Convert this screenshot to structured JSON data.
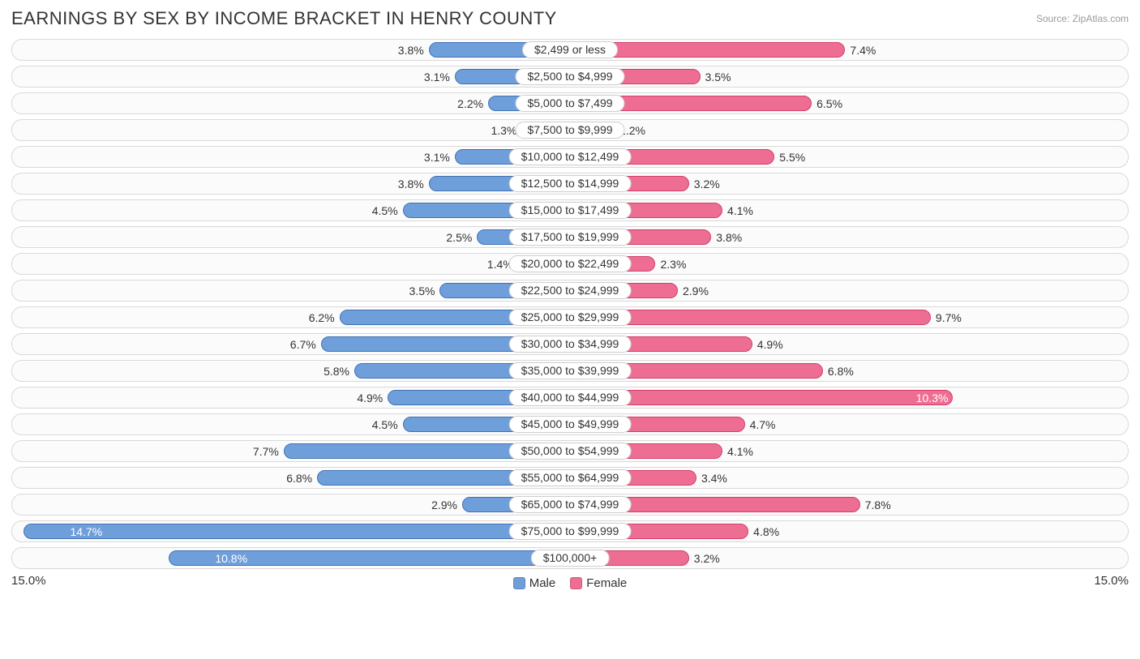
{
  "chart": {
    "type": "diverging-bar",
    "title": "EARNINGS BY SEX BY INCOME BRACKET IN HENRY COUNTY",
    "source_label": "Source: ZipAtlas.com",
    "title_color": "#333333",
    "title_fontsize": 22,
    "background_color": "#ffffff",
    "track_border_color": "#d9d9d9",
    "track_bg_color": "#fbfbfb",
    "track_radius": 13,
    "bar_radius": 10,
    "value_fontsize": 14,
    "value_color_outside": "#333333",
    "value_color_inside": "#ffffff",
    "category_pill_bg": "#ffffff",
    "category_pill_border": "#cfcfcf",
    "axis_max": 15.0,
    "axis_left_label": "15.0%",
    "axis_right_label": "15.0%",
    "legend": {
      "male": {
        "label": "Male",
        "color": "#6f9fdb",
        "border": "#3f72b2"
      },
      "female": {
        "label": "Female",
        "color": "#ee6e93",
        "border": "#d23d6b"
      }
    },
    "inside_label_threshold": 10.0,
    "rows": [
      {
        "category": "$2,499 or less",
        "male": 3.8,
        "female": 7.4
      },
      {
        "category": "$2,500 to $4,999",
        "male": 3.1,
        "female": 3.5
      },
      {
        "category": "$5,000 to $7,499",
        "male": 2.2,
        "female": 6.5
      },
      {
        "category": "$7,500 to $9,999",
        "male": 1.3,
        "female": 1.2
      },
      {
        "category": "$10,000 to $12,499",
        "male": 3.1,
        "female": 5.5
      },
      {
        "category": "$12,500 to $14,999",
        "male": 3.8,
        "female": 3.2
      },
      {
        "category": "$15,000 to $17,499",
        "male": 4.5,
        "female": 4.1
      },
      {
        "category": "$17,500 to $19,999",
        "male": 2.5,
        "female": 3.8
      },
      {
        "category": "$20,000 to $22,499",
        "male": 1.4,
        "female": 2.3
      },
      {
        "category": "$22,500 to $24,999",
        "male": 3.5,
        "female": 2.9
      },
      {
        "category": "$25,000 to $29,999",
        "male": 6.2,
        "female": 9.7
      },
      {
        "category": "$30,000 to $34,999",
        "male": 6.7,
        "female": 4.9
      },
      {
        "category": "$35,000 to $39,999",
        "male": 5.8,
        "female": 6.8
      },
      {
        "category": "$40,000 to $44,999",
        "male": 4.9,
        "female": 10.3
      },
      {
        "category": "$45,000 to $49,999",
        "male": 4.5,
        "female": 4.7
      },
      {
        "category": "$50,000 to $54,999",
        "male": 7.7,
        "female": 4.1
      },
      {
        "category": "$55,000 to $64,999",
        "male": 6.8,
        "female": 3.4
      },
      {
        "category": "$65,000 to $74,999",
        "male": 2.9,
        "female": 7.8
      },
      {
        "category": "$75,000 to $99,999",
        "male": 14.7,
        "female": 4.8
      },
      {
        "category": "$100,000+",
        "male": 10.8,
        "female": 3.2
      }
    ]
  }
}
